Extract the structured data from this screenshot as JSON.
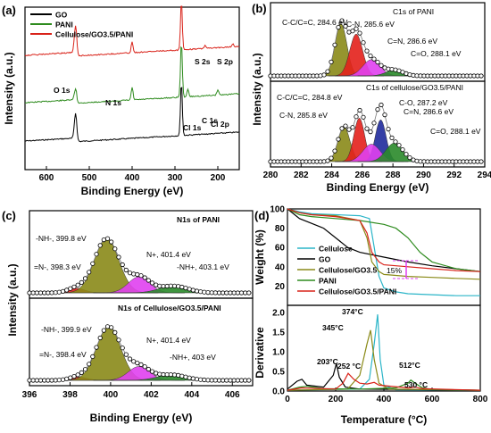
{
  "chart_data": [
    {
      "panel": "(a)",
      "type": "line",
      "xlabel": "Binding Energy (eV)",
      "ylabel": "Intensity (a.u.)",
      "xlim": [
        650,
        150
      ],
      "x_ticks": [
        "600",
        "500",
        "400",
        "300",
        "200"
      ],
      "legend": [
        "GO",
        "PANI",
        "Cellulose/GO3.5/PANI"
      ],
      "legend_placement": "top-left",
      "series_colors": [
        "#000000",
        "#2e8b1e",
        "#d9231a"
      ],
      "annotations": [
        "O 1s",
        "N 1s",
        "C 1s",
        "Cl 1s",
        "Cl 2p",
        "S 2s",
        "S 2p"
      ]
    },
    {
      "panel": "(b)",
      "type": "area",
      "xlabel": "Binding Energy (eV)",
      "ylabel": "Intensity (a.u.)",
      "xlim": [
        280,
        294
      ],
      "x_ticks": [
        "280",
        "282",
        "284",
        "286",
        "288",
        "290",
        "292",
        "294"
      ],
      "subplots": [
        {
          "title": "C1s of PANI",
          "peaks": [
            {
              "label": "C-C/C=C, 284.6 eV",
              "center": 284.6,
              "height": 0.9,
              "width": 0.55,
              "color": "#8a8a18"
            },
            {
              "label": "C-N, 285.6 eV",
              "center": 285.6,
              "height": 0.72,
              "width": 0.6,
              "color": "#e3201b"
            },
            {
              "label": "C=N, 286.6 eV",
              "center": 286.6,
              "height": 0.28,
              "width": 0.8,
              "color": "#e040f0"
            },
            {
              "label": "C=O, 288.1 eV",
              "center": 288.1,
              "height": 0.1,
              "width": 0.8,
              "color": "#2a8a2a"
            }
          ]
        },
        {
          "title": "C1s of cellulose/GO3.5/PANI",
          "peaks": [
            {
              "label": "C-C/C=C, 284.8 eV",
              "center": 284.8,
              "height": 0.6,
              "width": 0.55,
              "color": "#8a8a18"
            },
            {
              "label": "C-N, 285.8 eV",
              "center": 285.8,
              "height": 0.75,
              "width": 0.5,
              "color": "#e3201b"
            },
            {
              "label": "C-O, 287.2 eV",
              "center": 287.2,
              "height": 0.72,
              "width": 0.5,
              "color": "#1f2a9c"
            },
            {
              "label": "C=N, 286.6 eV",
              "center": 286.6,
              "height": 0.3,
              "width": 0.8,
              "color": "#e040f0"
            },
            {
              "label": "C=O, 288.1 eV",
              "center": 288.1,
              "height": 0.32,
              "width": 0.8,
              "color": "#2a8a2a"
            }
          ]
        }
      ]
    },
    {
      "panel": "(c)",
      "type": "area",
      "xlabel": "Binding Energy (eV)",
      "ylabel": "Intensity (a.u.)",
      "xlim": [
        396,
        407
      ],
      "x_ticks": [
        "396",
        "398",
        "400",
        "402",
        "404",
        "406"
      ],
      "subplots": [
        {
          "title": "N1s of PANI",
          "peaks": [
            {
              "label": "=N-, 398.3 eV",
              "center": 398.3,
              "height": 0.08,
              "width": 0.6,
              "color": "#e3201b"
            },
            {
              "label": "-NH-, 399.8 eV",
              "center": 399.8,
              "height": 0.95,
              "width": 0.85,
              "color": "#8a8a18"
            },
            {
              "label": "N+, 401.4 eV",
              "center": 401.4,
              "height": 0.28,
              "width": 0.75,
              "color": "#e040f0"
            },
            {
              "label": "-NH+, 403.1 eV",
              "center": 403.1,
              "height": 0.12,
              "width": 1.0,
              "color": "#2a8a2a"
            }
          ]
        },
        {
          "title": "N1s of Cellulose/GO3.5/PANI",
          "peaks": [
            {
              "label": "=N-, 398.4 eV",
              "center": 398.4,
              "height": 0.06,
              "width": 0.6,
              "color": "#e3201b"
            },
            {
              "label": "-NH-, 399.9 eV",
              "center": 399.9,
              "height": 0.97,
              "width": 0.85,
              "color": "#8a8a18"
            },
            {
              "label": "N+, 401.4 eV",
              "center": 401.4,
              "height": 0.25,
              "width": 0.75,
              "color": "#e040f0"
            },
            {
              "label": "-NH+, 403 eV",
              "center": 403.0,
              "height": 0.1,
              "width": 1.0,
              "color": "#2a8a2a"
            }
          ]
        }
      ]
    },
    {
      "panel": "(d)",
      "type": "line",
      "xlabel": "Temperature (°C)",
      "ylabel_top": "Weight (%)",
      "ylabel_bottom": "Derivative",
      "xlim": [
        0,
        800
      ],
      "x_ticks": [
        "0",
        "200",
        "400",
        "600",
        "800"
      ],
      "top_ylim": [
        0,
        100
      ],
      "top_y_ticks": [
        "0",
        "20",
        "40",
        "60",
        "80",
        "100"
      ],
      "bottom_ylim": [
        0.0,
        2.0
      ],
      "bottom_y_ticks": [
        "0.0",
        "0.5",
        "1.0",
        "1.5",
        "2.0"
      ],
      "legend": [
        "Cellulose",
        "GO",
        "Cellulose/GO3.5",
        "PANI",
        "Cellulose/GO3.5/PANI"
      ],
      "series_colors": [
        "#2bb5c8",
        "#000000",
        "#8a8a18",
        "#2e8b1e",
        "#d9231a"
      ],
      "weight_series": [
        {
          "name": "Cellulose",
          "x": [
            0,
            50,
            100,
            200,
            300,
            340,
            360,
            380,
            400,
            450,
            500,
            600,
            700,
            800
          ],
          "y": [
            100,
            97,
            95,
            94,
            93,
            90,
            60,
            30,
            18,
            14,
            12,
            11,
            10,
            10
          ]
        },
        {
          "name": "GO",
          "x": [
            0,
            50,
            100,
            150,
            200,
            250,
            300,
            400,
            500,
            600,
            700,
            800
          ],
          "y": [
            100,
            90,
            85,
            80,
            70,
            60,
            55,
            50,
            45,
            41,
            38,
            35
          ]
        },
        {
          "name": "Cellulose/GO3.5",
          "x": [
            0,
            50,
            100,
            200,
            300,
            330,
            350,
            380,
            400,
            500,
            600,
            700,
            800
          ],
          "y": [
            100,
            96,
            94,
            93,
            88,
            70,
            45,
            35,
            32,
            30,
            29,
            28,
            27
          ]
        },
        {
          "name": "PANI",
          "x": [
            0,
            50,
            100,
            200,
            300,
            400,
            450,
            500,
            550,
            600,
            700,
            800
          ],
          "y": [
            100,
            94,
            92,
            90,
            88,
            84,
            80,
            70,
            55,
            45,
            38,
            35
          ]
        },
        {
          "name": "Cellulose/GO3.5/PANI",
          "x": [
            0,
            50,
            100,
            200,
            300,
            330,
            350,
            380,
            400,
            500,
            600,
            700,
            800
          ],
          "y": [
            100,
            96,
            94,
            92,
            88,
            75,
            55,
            45,
            42,
            40,
            38,
            36,
            35
          ]
        }
      ],
      "derivative_series": [
        {
          "name": "Cellulose",
          "x": [
            0,
            300,
            340,
            360,
            374,
            385,
            400,
            450,
            800
          ],
          "y": [
            0.02,
            0.05,
            0.3,
            1.2,
            1.95,
            0.8,
            0.15,
            0.03,
            0.02
          ]
        },
        {
          "name": "GO",
          "x": [
            0,
            40,
            60,
            80,
            150,
            190,
            203,
            215,
            240,
            300,
            800
          ],
          "y": [
            0.05,
            0.25,
            0.3,
            0.15,
            0.1,
            0.4,
            0.7,
            0.35,
            0.1,
            0.05,
            0.02
          ]
        },
        {
          "name": "Cellulose/GO3.5",
          "x": [
            0,
            250,
            300,
            330,
            345,
            360,
            380,
            420,
            800
          ],
          "y": [
            0.02,
            0.05,
            0.4,
            1.2,
            1.55,
            0.8,
            0.2,
            0.05,
            0.02
          ]
        },
        {
          "name": "PANI",
          "x": [
            0,
            50,
            80,
            150,
            300,
            450,
            500,
            512,
            530,
            560,
            600,
            800
          ],
          "y": [
            0.02,
            0.1,
            0.12,
            0.06,
            0.05,
            0.08,
            0.2,
            0.28,
            0.2,
            0.08,
            0.04,
            0.02
          ]
        },
        {
          "name": "Cellulose/GO3.5/PANI",
          "x": [
            0,
            60,
            200,
            230,
            252,
            275,
            300,
            330,
            360,
            380,
            500,
            530,
            560,
            800
          ],
          "y": [
            0.02,
            0.08,
            0.05,
            0.2,
            0.45,
            0.3,
            0.2,
            0.18,
            0.22,
            0.15,
            0.08,
            0.1,
            0.06,
            0.02
          ]
        }
      ],
      "peak_labels": [
        "374°C",
        "345°C",
        "203°C",
        "252 °C",
        "512°C",
        "530 °C"
      ],
      "arrow_label": "15%"
    }
  ]
}
